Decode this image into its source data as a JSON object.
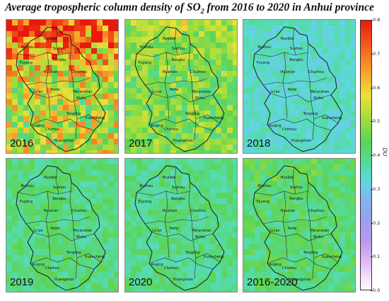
{
  "title": {
    "prefix": "Average tropospheric column density of SO",
    "subscript": "2",
    "suffix": " from 2016 to 2020 in Anhui province"
  },
  "panels": [
    {
      "label": "2016",
      "mean": 0.55,
      "spread": 0.14,
      "north_boost": 0.22,
      "seed": 11
    },
    {
      "label": "2017",
      "mean": 0.49,
      "spread": 0.08,
      "north_boost": 0.05,
      "seed": 23
    },
    {
      "label": "2018",
      "mean": 0.36,
      "spread": 0.05,
      "north_boost": 0.0,
      "seed": 37
    },
    {
      "label": "2019",
      "mean": 0.43,
      "spread": 0.05,
      "north_boost": 0.0,
      "seed": 41
    },
    {
      "label": "2020",
      "mean": 0.42,
      "spread": 0.05,
      "north_boost": 0.0,
      "seed": 53
    },
    {
      "label": "2016-2020",
      "mean": 0.44,
      "spread": 0.05,
      "north_boost": 0.02,
      "seed": 67
    }
  ],
  "cities": [
    "Huaibei",
    "Bozhou",
    "Suzhou",
    "Fuyang",
    "Bengbu",
    "Huainan",
    "Chuzhou",
    "Lu'an",
    "Hefei",
    "Ma'anshan",
    "Wuhu",
    "Tongling",
    "Xuancheng",
    "Anqing",
    "Chizhou",
    "Huangshan"
  ],
  "colorbar": {
    "unit": "DU",
    "range": [
      0.0,
      0.8
    ],
    "ticks": [
      "0.8",
      "0.7",
      "0.6",
      "0.5",
      "0.4",
      "0.3",
      "0.2",
      "0.1",
      "0.0"
    ],
    "colors": [
      "#fbfbfd",
      "#e2baf2",
      "#b899ee",
      "#9a9ff0",
      "#7fb7ec",
      "#5fd7e0",
      "#55dba6",
      "#5bd456",
      "#a5de3b",
      "#ece13a",
      "#f79a29",
      "#f3541a",
      "#e8190d"
    ]
  }
}
